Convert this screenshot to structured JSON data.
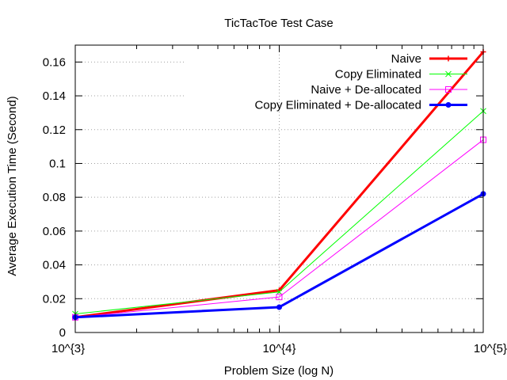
{
  "chart_data": {
    "type": "line",
    "title": "TicTacToe Test Case",
    "xlabel": "Problem Size (log N)",
    "ylabel": "Average Execution Time (Second)",
    "x_scale": "log",
    "x": [
      1000,
      10000,
      100000
    ],
    "x_tick_labels": [
      "10^{3}",
      "10^{4}",
      "10^{5}"
    ],
    "xlim": [
      1000,
      100000
    ],
    "ylim": [
      0,
      0.17
    ],
    "y_ticks": [
      0,
      0.02,
      0.04,
      0.06,
      0.08,
      0.1,
      0.12,
      0.14,
      0.16
    ],
    "y_tick_labels": [
      "0",
      "0.02",
      "0.04",
      "0.06",
      "0.08",
      "0.1",
      "0.12",
      "0.14",
      "0.16"
    ],
    "grid": true,
    "legend_position": "top-right",
    "series": [
      {
        "name": "Naive",
        "color": "#ff0000",
        "marker": "plus",
        "values": [
          0.009,
          0.025,
          0.166
        ]
      },
      {
        "name": "Copy Eliminated",
        "color": "#00ff00",
        "marker": "cross",
        "values": [
          0.011,
          0.024,
          0.131
        ]
      },
      {
        "name": "Naive + De-allocated",
        "color": "#ff00ff",
        "marker": "square",
        "values": [
          0.009,
          0.021,
          0.114
        ]
      },
      {
        "name": "Copy Eliminated + De-allocated",
        "color": "#0000ff",
        "marker": "circle",
        "values": [
          0.009,
          0.015,
          0.082
        ]
      }
    ]
  }
}
